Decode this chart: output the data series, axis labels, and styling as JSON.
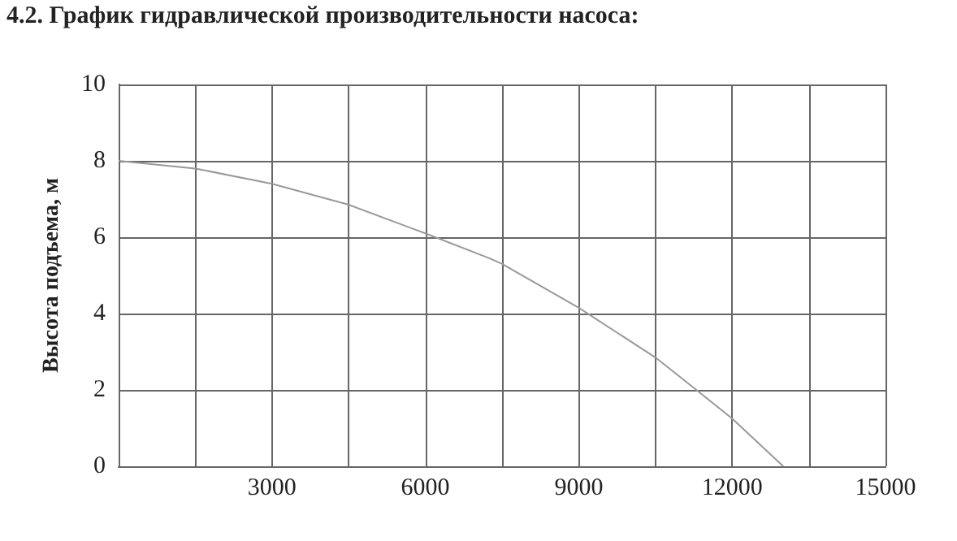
{
  "chart_data": {
    "type": "line",
    "title": "4.2. График гидравлической производительности насоса:",
    "ylabel": "Высота подъема, м",
    "x": [
      0,
      1500,
      3000,
      4500,
      6000,
      7250,
      7500,
      9000,
      10500,
      11300,
      12000,
      13000
    ],
    "series": [
      {
        "color": "#999999",
        "values": [
          8,
          7.8,
          7.4,
          6.85,
          6.1,
          5.45,
          5.3,
          4.15,
          2.85,
          2,
          1.25,
          0
        ]
      }
    ],
    "xlim": [
      0,
      15000
    ],
    "xticks": [
      {
        "value": 0,
        "label": null
      },
      {
        "value": 1500,
        "label": null
      },
      3000,
      {
        "value": 4500,
        "label": null
      },
      6000,
      {
        "value": 7500,
        "label": null
      },
      9000,
      {
        "value": 10500,
        "label": null
      },
      12000,
      {
        "value": 13500,
        "label": null
      },
      15000
    ],
    "ylim": [
      0,
      10
    ],
    "yticks": [
      0,
      2,
      4,
      6,
      8,
      10
    ],
    "grid": true,
    "marker": "none",
    "line_style": "solid"
  }
}
